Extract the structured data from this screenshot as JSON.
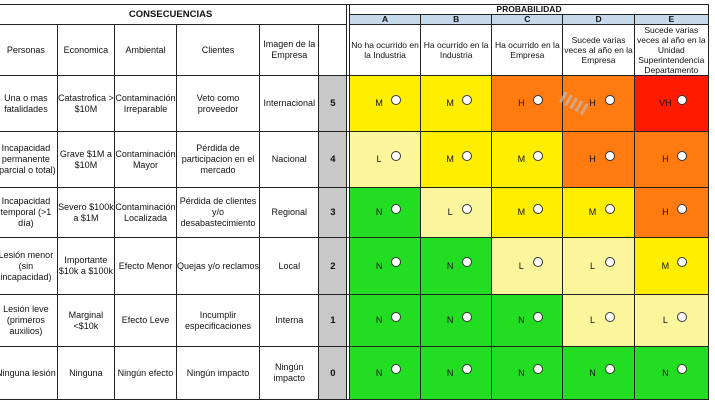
{
  "header": {
    "consequences_title": "CONSECUENCIAS",
    "probability_title": "PROBABILIDAD"
  },
  "consequence_columns": [
    "Personas",
    "Economica",
    "Ambiental",
    "Clientes",
    "Imagen de la Empresa"
  ],
  "probability_columns": [
    {
      "letter": "A",
      "label": "No ha ocurrido en la Industria"
    },
    {
      "letter": "B",
      "label": "Ha ocurrido en la Industria"
    },
    {
      "letter": "C",
      "label": "Ha ocurrido en la Empresa"
    },
    {
      "letter": "D",
      "label": "Sucede varias veces al año en la Empresa"
    },
    {
      "letter": "E",
      "label": "Sucede varias veces al año en la Unidad Superintendencia Departamento"
    }
  ],
  "rows": [
    {
      "personas": "Una o mas fatalidades",
      "economica": "Catastrofica > $10M",
      "ambiental": "Contaminación Irreparable",
      "clientes": "Veto como proveedor",
      "imagen": "Internacional",
      "severity": "5",
      "cells": [
        {
          "level": "M"
        },
        {
          "level": "M"
        },
        {
          "level": "H"
        },
        {
          "level": "H"
        },
        {
          "level": "VH"
        }
      ]
    },
    {
      "personas": "Incapacidad permanente (parcial o total)",
      "economica": "Grave $1M a $10M",
      "ambiental": "Contaminación Mayor",
      "clientes": "Pérdida de participacion en el mercado",
      "imagen": "Nacional",
      "severity": "4",
      "cells": [
        {
          "level": "L"
        },
        {
          "level": "M"
        },
        {
          "level": "M"
        },
        {
          "level": "H"
        },
        {
          "level": "H"
        }
      ]
    },
    {
      "personas": "Incapacidad temporal (>1 día)",
      "economica": "Severo $100k a $1M",
      "ambiental": "Contaminación Localizada",
      "clientes": "Pérdida de clientes y/o desabastecimiento",
      "imagen": "Regional",
      "severity": "3",
      "cells": [
        {
          "level": "N"
        },
        {
          "level": "L"
        },
        {
          "level": "M"
        },
        {
          "level": "M"
        },
        {
          "level": "H"
        }
      ]
    },
    {
      "personas": "Lesión menor (sin incapacidad)",
      "economica": "Importante $10k a $100k",
      "ambiental": "Efecto Menor",
      "clientes": "Quejas y/o reclamos",
      "imagen": "Local",
      "severity": "2",
      "cells": [
        {
          "level": "N"
        },
        {
          "level": "N"
        },
        {
          "level": "L"
        },
        {
          "level": "L"
        },
        {
          "level": "M"
        }
      ]
    },
    {
      "personas": "Lesión leve (primeros auxilios)",
      "economica": "Marginal <$10k",
      "ambiental": "Efecto Leve",
      "clientes": "Incumplir especificaciones",
      "imagen": "Interna",
      "severity": "1",
      "cells": [
        {
          "level": "N"
        },
        {
          "level": "N"
        },
        {
          "level": "N"
        },
        {
          "level": "L"
        },
        {
          "level": "L"
        }
      ]
    },
    {
      "personas": "Ninguna lesión",
      "economica": "Ninguna",
      "ambiental": "Ningún efecto",
      "clientes": "Ningún impacto",
      "imagen": "Ningún impacto",
      "severity": "0",
      "cells": [
        {
          "level": "N"
        },
        {
          "level": "N"
        },
        {
          "level": "N"
        },
        {
          "level": "N"
        },
        {
          "level": "N"
        }
      ]
    }
  ],
  "level_colors": {
    "N": "#22dd22",
    "L": "#fbf59c",
    "M": "#ffee00",
    "H": "#ff7a0f",
    "VH": "#ff1a00"
  }
}
